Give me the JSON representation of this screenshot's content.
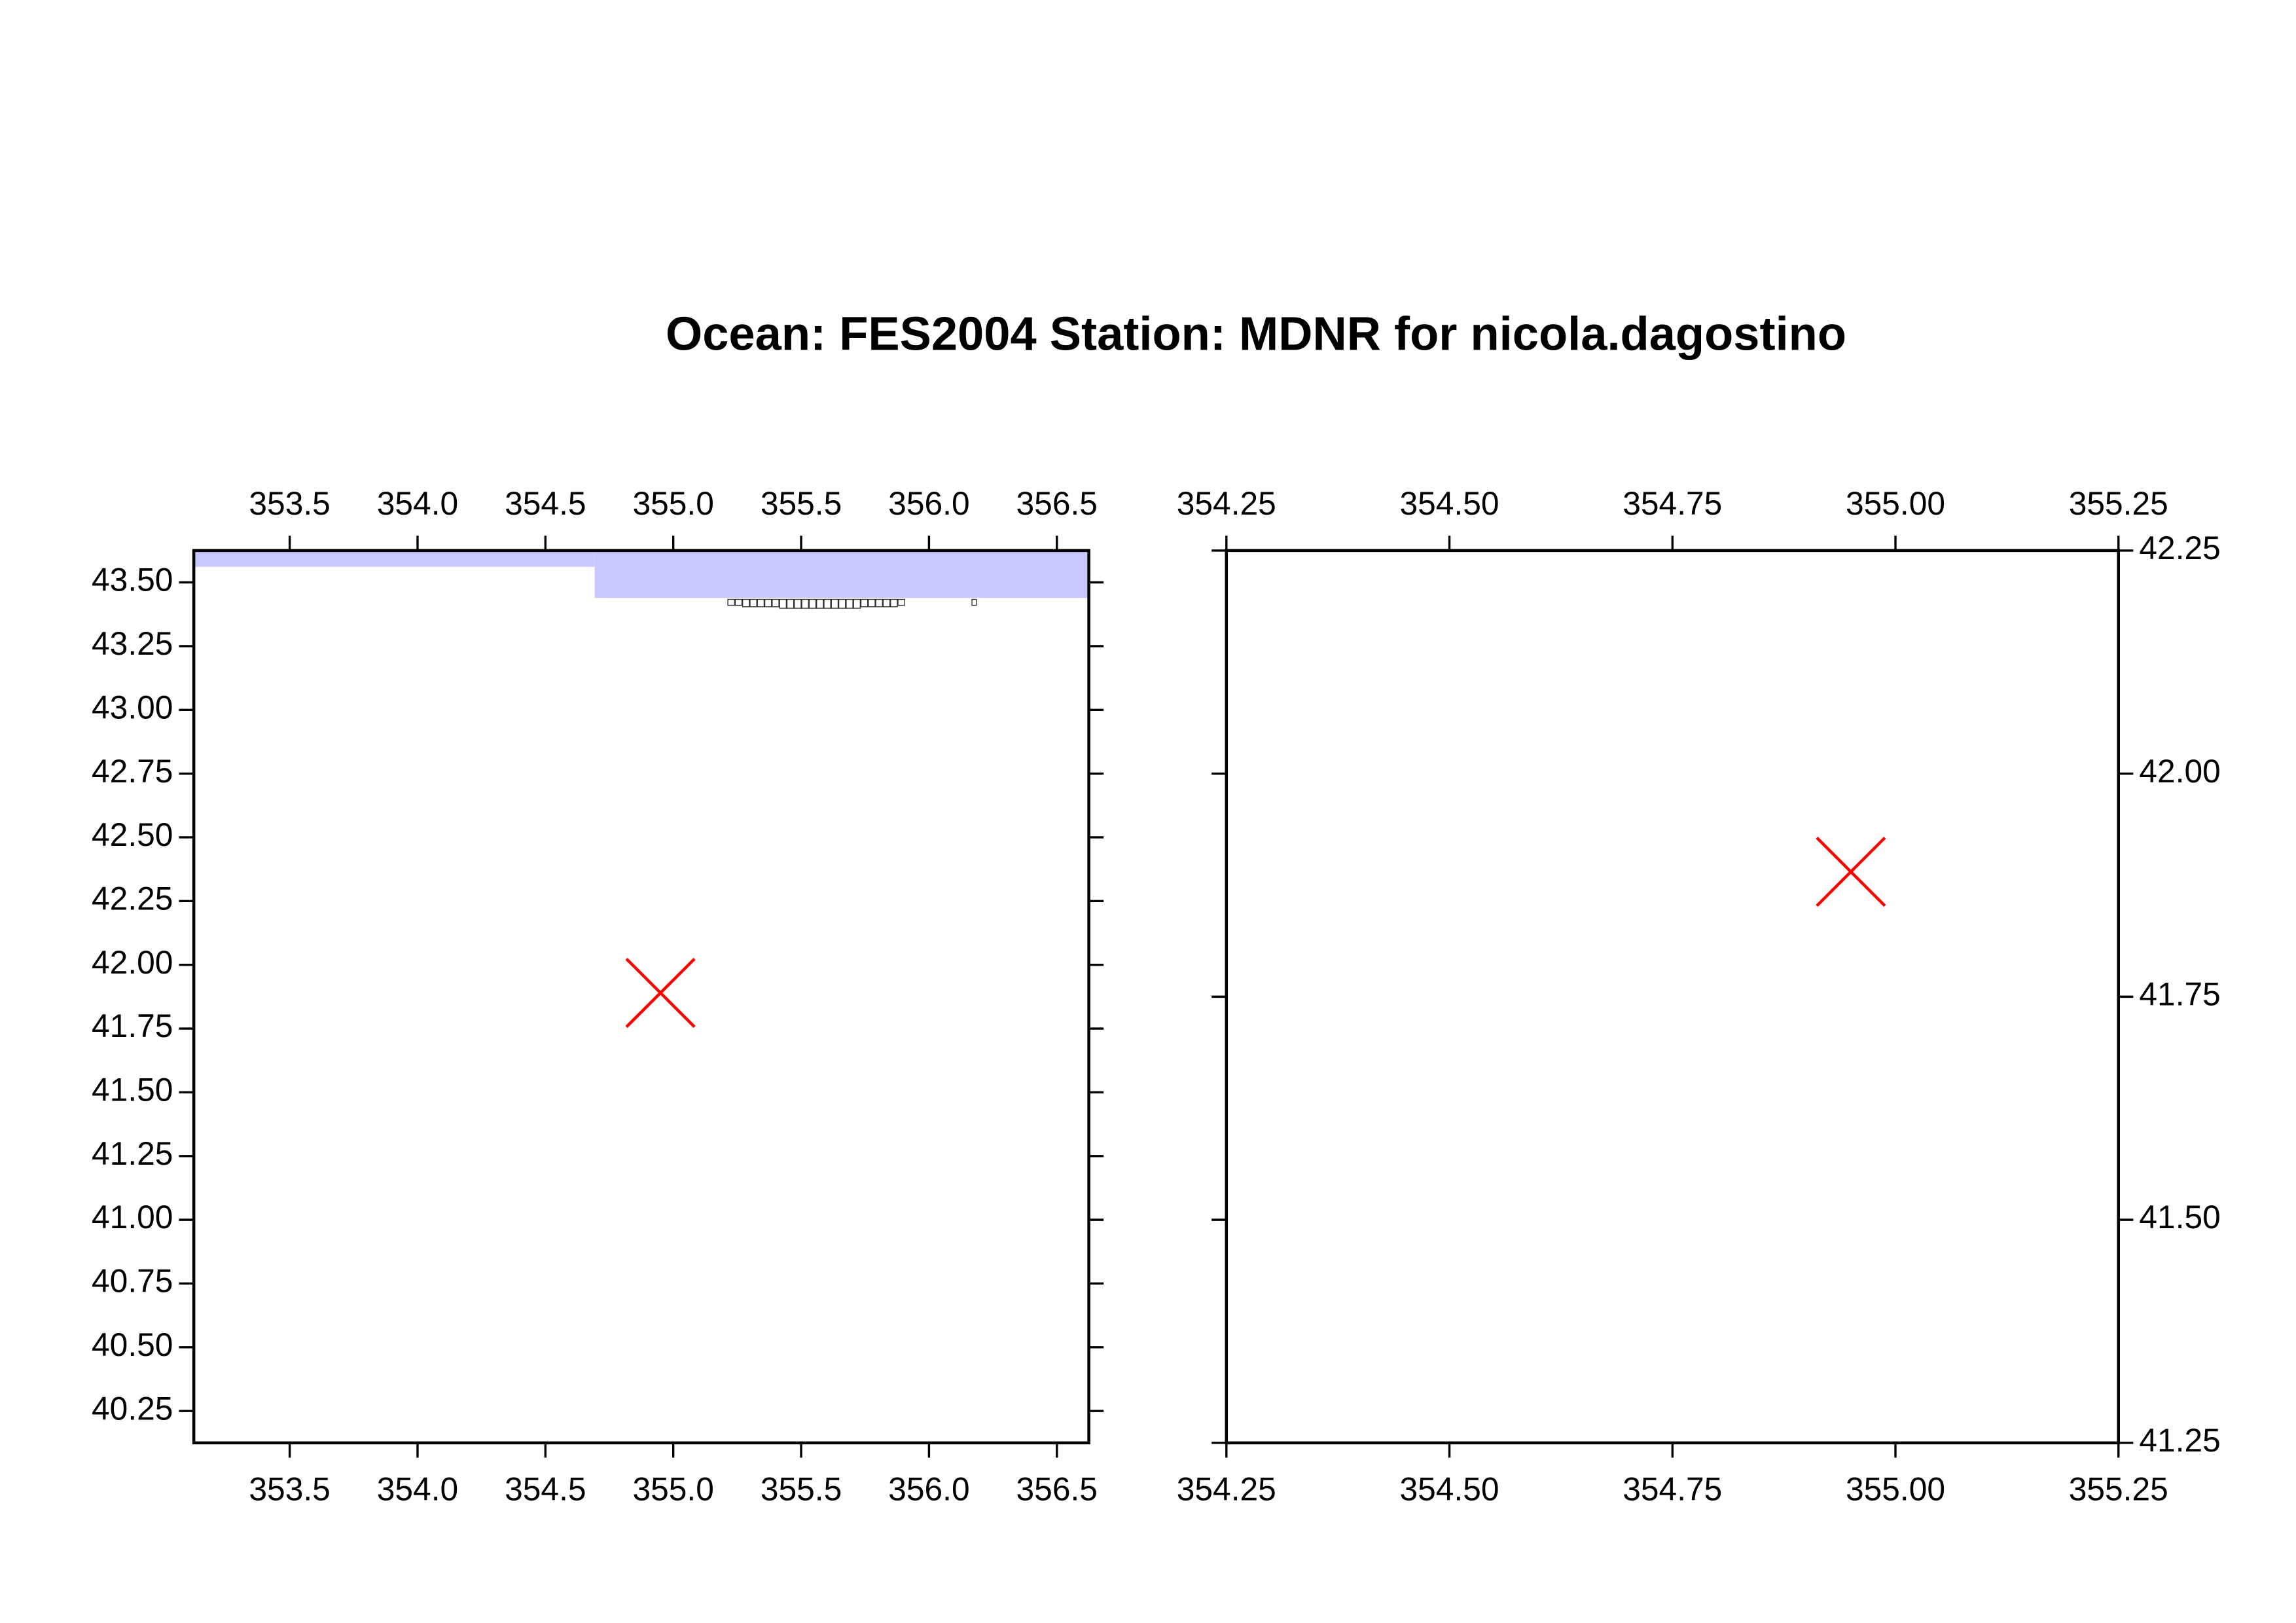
{
  "title": "Ocean: FES2004  Station: MDNR  for nicola.dagostino",
  "chart_data": [
    {
      "type": "map",
      "xlim": [
        353.125,
        356.625
      ],
      "ylim": [
        40.125,
        43.625
      ],
      "xticks": [
        353.5,
        {
          "value": 354,
          "label": "354.0"
        },
        354.5,
        {
          "value": 355,
          "label": "355.0"
        },
        355.5,
        {
          "value": 356,
          "label": "356.0"
        },
        356.5
      ],
      "yticks": [
        40.25,
        {
          "value": 40.5,
          "label": "40.50"
        },
        40.75,
        {
          "value": 41,
          "label": "41.00"
        },
        41.25,
        {
          "value": 41.5,
          "label": "41.50"
        },
        41.75,
        {
          "value": 42,
          "label": "42.00"
        },
        42.25,
        {
          "value": 42.5,
          "label": "42.50"
        },
        42.75,
        {
          "value": 43,
          "label": "43.00"
        },
        43.25,
        {
          "value": 43.5,
          "label": "43.50"
        }
      ],
      "series": [
        {
          "x": [
            354.95
          ],
          "y": [
            41.89
          ],
          "color": "#ff0000"
        }
      ]
    },
    {
      "type": "map",
      "xlim": [
        354.25,
        355.25
      ],
      "ylim": [
        41.25,
        42.25
      ],
      "xticks": [
        354.25,
        {
          "value": 354.5,
          "label": "354.50"
        },
        354.75,
        {
          "value": 355,
          "label": "355.00"
        },
        355.25
      ],
      "yticks": [
        41.25,
        {
          "value": 41.5,
          "label": "41.50"
        },
        41.75,
        {
          "value": 42,
          "label": "42.00"
        },
        42.25
      ],
      "series": [
        {
          "x": [
            354.95
          ],
          "y": [
            41.89
          ],
          "color": "#ff0000"
        }
      ]
    }
  ]
}
